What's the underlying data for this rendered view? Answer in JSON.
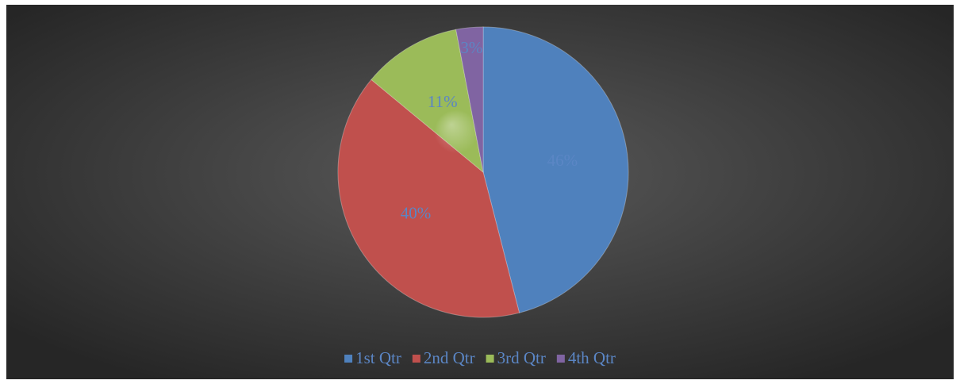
{
  "chart_data": {
    "type": "pie",
    "categories": [
      "1st Qtr",
      "2nd Qtr",
      "3rd Qtr",
      "4th Qtr"
    ],
    "values": [
      46,
      40,
      11,
      3
    ],
    "value_labels": [
      "46%",
      "40%",
      "11%",
      "3%"
    ],
    "colors": [
      "#4f81bd",
      "#c0504d",
      "#9bbb59",
      "#8064a2"
    ],
    "legend": "bottom"
  }
}
